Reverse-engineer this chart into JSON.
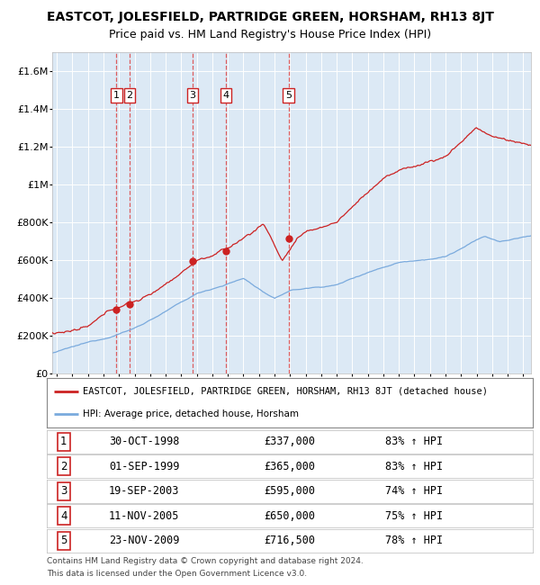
{
  "title": "EASTCOT, JOLESFIELD, PARTRIDGE GREEN, HORSHAM, RH13 8JT",
  "subtitle": "Price paid vs. HM Land Registry's House Price Index (HPI)",
  "footer1": "Contains HM Land Registry data © Crown copyright and database right 2024.",
  "footer2": "This data is licensed under the Open Government Licence v3.0.",
  "legend_line1": "EASTCOT, JOLESFIELD, PARTRIDGE GREEN, HORSHAM, RH13 8JT (detached house)",
  "legend_line2": "HPI: Average price, detached house, Horsham",
  "transactions": [
    {
      "num": 1,
      "date": "30-OCT-1998",
      "price": 337000,
      "pct": "83%",
      "year": 1998.83
    },
    {
      "num": 2,
      "date": "01-SEP-1999",
      "price": 365000,
      "pct": "83%",
      "year": 1999.67
    },
    {
      "num": 3,
      "date": "19-SEP-2003",
      "price": 595000,
      "pct": "74%",
      "year": 2003.72
    },
    {
      "num": 4,
      "date": "11-NOV-2005",
      "price": 650000,
      "pct": "75%",
      "year": 2005.87
    },
    {
      "num": 5,
      "date": "23-NOV-2009",
      "price": 716500,
      "pct": "78%",
      "year": 2009.9
    }
  ],
  "hpi_color": "#7aaadd",
  "price_color": "#cc2222",
  "plot_bg_color": "#dce9f5",
  "grid_color": "#ffffff",
  "dashed_line_color": "#dd4444",
  "ylim": [
    0,
    1700000
  ],
  "xlim_start": 1994.7,
  "xlim_end": 2025.5,
  "yticks": [
    0,
    200000,
    400000,
    600000,
    800000,
    1000000,
    1200000,
    1400000,
    1600000
  ]
}
